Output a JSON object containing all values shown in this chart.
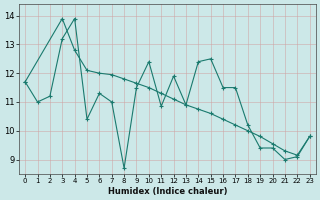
{
  "xlabel": "Humidex (Indice chaleur)",
  "bg_color": "#cce8e8",
  "line_color": "#1a7a6e",
  "xlim": [
    -0.5,
    23.5
  ],
  "ylim": [
    8.5,
    14.4
  ],
  "yticks": [
    9,
    10,
    11,
    12,
    13,
    14
  ],
  "xticks": [
    0,
    1,
    2,
    3,
    4,
    5,
    6,
    7,
    8,
    9,
    10,
    11,
    12,
    13,
    14,
    15,
    16,
    17,
    18,
    19,
    20,
    21,
    22,
    23
  ],
  "series1_x": [
    0,
    1,
    2,
    3,
    4,
    5,
    6,
    7,
    8,
    9,
    10,
    11,
    12,
    13,
    14,
    15,
    16,
    17,
    18,
    19,
    20,
    21,
    22,
    23
  ],
  "series1_y": [
    11.7,
    11.0,
    11.2,
    13.2,
    13.9,
    10.4,
    11.3,
    11.0,
    8.7,
    11.5,
    12.4,
    10.85,
    11.9,
    10.9,
    12.4,
    12.5,
    11.5,
    11.5,
    10.2,
    9.4,
    9.4,
    9.0,
    9.1,
    9.8
  ],
  "series2_x": [
    0,
    3,
    4,
    5,
    6,
    7,
    8,
    9,
    10,
    11,
    12,
    13,
    14,
    15,
    16,
    17,
    18,
    19,
    20,
    21,
    22,
    23
  ],
  "series2_y": [
    11.7,
    13.9,
    12.8,
    12.1,
    12.0,
    11.95,
    11.8,
    11.65,
    11.5,
    11.3,
    11.1,
    10.9,
    10.75,
    10.6,
    10.4,
    10.2,
    10.0,
    9.8,
    9.55,
    9.3,
    9.15,
    9.8
  ],
  "grid_color": "#b8d8d8",
  "xtick_fontsize": 5.0,
  "ytick_fontsize": 6.0,
  "xlabel_fontsize": 6.0
}
